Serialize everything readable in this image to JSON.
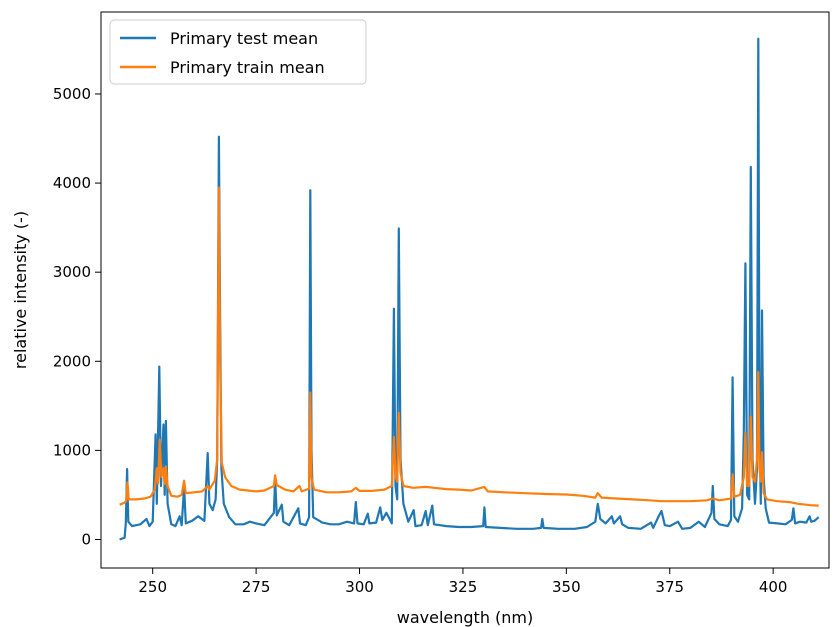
{
  "chart_data": {
    "type": "line",
    "xlabel": "wavelength (nm)",
    "ylabel": "relative intensity (-)",
    "xlim": [
      237.5,
      413.5
    ],
    "ylim": [
      -320,
      5920
    ],
    "xticks": [
      250,
      275,
      300,
      325,
      350,
      375,
      400
    ],
    "yticks": [
      0,
      1000,
      2000,
      3000,
      4000,
      5000
    ],
    "x_tick_labels": [
      "250",
      "275",
      "300",
      "325",
      "350",
      "375",
      "400"
    ],
    "y_tick_labels": [
      "0",
      "1000",
      "2000",
      "3000",
      "4000",
      "5000"
    ],
    "grid": false,
    "legend_position": "top-left",
    "series": [
      {
        "name": "Primary test mean",
        "color": "#1f77b4",
        "points": [
          [
            242.0,
            0
          ],
          [
            243.2,
            20
          ],
          [
            243.5,
            180
          ],
          [
            243.8,
            790
          ],
          [
            244.1,
            200
          ],
          [
            245.0,
            150
          ],
          [
            247.0,
            170
          ],
          [
            248.5,
            230
          ],
          [
            249.2,
            150
          ],
          [
            250.0,
            200
          ],
          [
            250.7,
            1180
          ],
          [
            251.0,
            400
          ],
          [
            251.6,
            1940
          ],
          [
            252.0,
            600
          ],
          [
            252.6,
            1290
          ],
          [
            252.9,
            500
          ],
          [
            253.2,
            1330
          ],
          [
            253.6,
            400
          ],
          [
            254.5,
            170
          ],
          [
            255.5,
            150
          ],
          [
            256.5,
            260
          ],
          [
            257.0,
            160
          ],
          [
            257.6,
            590
          ],
          [
            258.0,
            180
          ],
          [
            259.5,
            210
          ],
          [
            261.0,
            260
          ],
          [
            262.5,
            210
          ],
          [
            263.3,
            970
          ],
          [
            263.7,
            400
          ],
          [
            264.5,
            330
          ],
          [
            265.2,
            450
          ],
          [
            265.6,
            900
          ],
          [
            266.0,
            4520
          ],
          [
            266.3,
            2500
          ],
          [
            266.6,
            800
          ],
          [
            267.2,
            400
          ],
          [
            268.5,
            250
          ],
          [
            270.0,
            170
          ],
          [
            272.0,
            170
          ],
          [
            273.5,
            200
          ],
          [
            275.0,
            180
          ],
          [
            277.0,
            160
          ],
          [
            279.3,
            300
          ],
          [
            279.6,
            680
          ],
          [
            280.0,
            270
          ],
          [
            281.2,
            390
          ],
          [
            281.6,
            200
          ],
          [
            283.0,
            160
          ],
          [
            285.2,
            350
          ],
          [
            285.6,
            180
          ],
          [
            287.0,
            160
          ],
          [
            287.8,
            250
          ],
          [
            288.1,
            3920
          ],
          [
            288.4,
            1000
          ],
          [
            288.8,
            250
          ],
          [
            291.0,
            190
          ],
          [
            293.0,
            170
          ],
          [
            295.0,
            170
          ],
          [
            297.0,
            200
          ],
          [
            298.7,
            180
          ],
          [
            299.1,
            420
          ],
          [
            299.5,
            180
          ],
          [
            301.0,
            170
          ],
          [
            302.0,
            290
          ],
          [
            302.4,
            180
          ],
          [
            304.0,
            190
          ],
          [
            305.0,
            360
          ],
          [
            305.5,
            220
          ],
          [
            306.5,
            300
          ],
          [
            307.8,
            180
          ],
          [
            308.3,
            2590
          ],
          [
            308.7,
            600
          ],
          [
            309.1,
            450
          ],
          [
            309.5,
            3490
          ],
          [
            309.9,
            900
          ],
          [
            310.6,
            400
          ],
          [
            311.8,
            200
          ],
          [
            313.1,
            330
          ],
          [
            313.5,
            150
          ],
          [
            315.0,
            160
          ],
          [
            316.0,
            320
          ],
          [
            316.5,
            160
          ],
          [
            317.6,
            380
          ],
          [
            318.0,
            170
          ],
          [
            321.0,
            150
          ],
          [
            324.0,
            140
          ],
          [
            327.0,
            140
          ],
          [
            329.9,
            150
          ],
          [
            330.2,
            360
          ],
          [
            330.5,
            140
          ],
          [
            334.0,
            130
          ],
          [
            338.0,
            120
          ],
          [
            342.0,
            120
          ],
          [
            343.9,
            130
          ],
          [
            344.2,
            230
          ],
          [
            344.5,
            130
          ],
          [
            348.0,
            120
          ],
          [
            352.0,
            120
          ],
          [
            355.0,
            140
          ],
          [
            357.0,
            200
          ],
          [
            357.6,
            400
          ],
          [
            358.2,
            230
          ],
          [
            359.5,
            180
          ],
          [
            361.0,
            260
          ],
          [
            361.5,
            180
          ],
          [
            363.0,
            260
          ],
          [
            363.5,
            170
          ],
          [
            365.0,
            130
          ],
          [
            368.0,
            120
          ],
          [
            370.5,
            190
          ],
          [
            371.0,
            130
          ],
          [
            372.2,
            250
          ],
          [
            373.0,
            320
          ],
          [
            373.8,
            160
          ],
          [
            375.0,
            150
          ],
          [
            377.0,
            200
          ],
          [
            378.0,
            120
          ],
          [
            380.0,
            130
          ],
          [
            382.0,
            200
          ],
          [
            383.5,
            140
          ],
          [
            385.1,
            300
          ],
          [
            385.4,
            600
          ],
          [
            385.8,
            230
          ],
          [
            387.0,
            170
          ],
          [
            389.0,
            150
          ],
          [
            389.8,
            220
          ],
          [
            390.2,
            1820
          ],
          [
            390.6,
            260
          ],
          [
            391.5,
            200
          ],
          [
            392.5,
            350
          ],
          [
            392.9,
            1200
          ],
          [
            393.3,
            3100
          ],
          [
            393.7,
            500
          ],
          [
            394.2,
            450
          ],
          [
            394.6,
            4180
          ],
          [
            395.0,
            900
          ],
          [
            395.6,
            400
          ],
          [
            396.1,
            800
          ],
          [
            396.4,
            5620
          ],
          [
            396.7,
            1200
          ],
          [
            397.0,
            400
          ],
          [
            397.3,
            2570
          ],
          [
            397.7,
            700
          ],
          [
            398.2,
            350
          ],
          [
            399.0,
            190
          ],
          [
            401.0,
            180
          ],
          [
            403.0,
            170
          ],
          [
            404.5,
            220
          ],
          [
            404.9,
            350
          ],
          [
            405.3,
            180
          ],
          [
            406.5,
            200
          ],
          [
            408.0,
            190
          ],
          [
            408.8,
            260
          ],
          [
            409.2,
            200
          ],
          [
            410.0,
            210
          ],
          [
            411.0,
            250
          ]
        ]
      },
      {
        "name": "Primary train mean",
        "color": "#ff7f0e",
        "points": [
          [
            242.0,
            390
          ],
          [
            243.0,
            410
          ],
          [
            243.6,
            430
          ],
          [
            243.9,
            640
          ],
          [
            244.2,
            450
          ],
          [
            246.0,
            450
          ],
          [
            248.0,
            460
          ],
          [
            249.5,
            480
          ],
          [
            250.5,
            560
          ],
          [
            251.0,
            800
          ],
          [
            251.3,
            630
          ],
          [
            251.7,
            1120
          ],
          [
            252.1,
            700
          ],
          [
            252.6,
            800
          ],
          [
            252.9,
            620
          ],
          [
            253.2,
            820
          ],
          [
            253.6,
            600
          ],
          [
            254.5,
            490
          ],
          [
            256.0,
            480
          ],
          [
            257.0,
            500
          ],
          [
            257.6,
            660
          ],
          [
            258.0,
            520
          ],
          [
            260.0,
            530
          ],
          [
            262.0,
            540
          ],
          [
            263.3,
            600
          ],
          [
            263.7,
            560
          ],
          [
            265.0,
            660
          ],
          [
            265.6,
            900
          ],
          [
            266.0,
            3950
          ],
          [
            266.3,
            2000
          ],
          [
            266.7,
            860
          ],
          [
            267.5,
            700
          ],
          [
            269.0,
            600
          ],
          [
            271.0,
            560
          ],
          [
            273.0,
            550
          ],
          [
            275.0,
            540
          ],
          [
            277.0,
            550
          ],
          [
            279.3,
            600
          ],
          [
            279.6,
            720
          ],
          [
            280.0,
            610
          ],
          [
            282.0,
            560
          ],
          [
            284.0,
            540
          ],
          [
            285.5,
            600
          ],
          [
            286.0,
            540
          ],
          [
            287.8,
            570
          ],
          [
            288.1,
            1650
          ],
          [
            288.4,
            700
          ],
          [
            289.0,
            560
          ],
          [
            292.0,
            530
          ],
          [
            295.0,
            530
          ],
          [
            298.0,
            540
          ],
          [
            299.1,
            580
          ],
          [
            300.0,
            545
          ],
          [
            303.0,
            545
          ],
          [
            306.0,
            560
          ],
          [
            307.8,
            600
          ],
          [
            308.3,
            1150
          ],
          [
            308.7,
            700
          ],
          [
            309.1,
            650
          ],
          [
            309.5,
            1420
          ],
          [
            309.9,
            750
          ],
          [
            310.6,
            600
          ],
          [
            313.0,
            580
          ],
          [
            316.0,
            590
          ],
          [
            318.0,
            580
          ],
          [
            321.0,
            565
          ],
          [
            324.0,
            560
          ],
          [
            327.0,
            550
          ],
          [
            330.2,
            590
          ],
          [
            331.0,
            540
          ],
          [
            335.0,
            530
          ],
          [
            340.0,
            520
          ],
          [
            345.0,
            510
          ],
          [
            350.0,
            505
          ],
          [
            354.0,
            490
          ],
          [
            357.0,
            470
          ],
          [
            357.6,
            520
          ],
          [
            358.5,
            470
          ],
          [
            362.0,
            460
          ],
          [
            366.0,
            450
          ],
          [
            370.0,
            440
          ],
          [
            373.0,
            430
          ],
          [
            376.0,
            430
          ],
          [
            380.0,
            430
          ],
          [
            384.0,
            440
          ],
          [
            385.4,
            460
          ],
          [
            387.0,
            440
          ],
          [
            389.8,
            460
          ],
          [
            390.2,
            730
          ],
          [
            390.6,
            480
          ],
          [
            392.0,
            500
          ],
          [
            392.9,
            700
          ],
          [
            393.3,
            1200
          ],
          [
            393.7,
            600
          ],
          [
            394.2,
            600
          ],
          [
            394.6,
            1380
          ],
          [
            395.0,
            700
          ],
          [
            395.6,
            650
          ],
          [
            396.1,
            900
          ],
          [
            396.4,
            1880
          ],
          [
            396.7,
            800
          ],
          [
            397.0,
            650
          ],
          [
            397.3,
            980
          ],
          [
            397.7,
            520
          ],
          [
            398.5,
            450
          ],
          [
            401.0,
            430
          ],
          [
            404.0,
            420
          ],
          [
            406.0,
            400
          ],
          [
            408.0,
            390
          ],
          [
            409.0,
            385
          ],
          [
            411.0,
            380
          ]
        ]
      }
    ]
  }
}
